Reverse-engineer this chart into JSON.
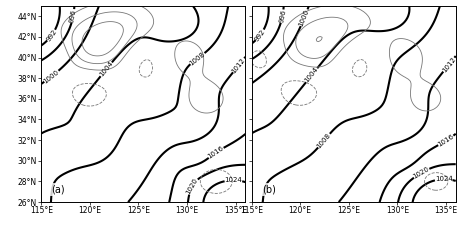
{
  "lon_range": [
    115,
    136
  ],
  "lat_range": [
    26,
    45
  ],
  "lon_ticks": [
    115,
    120,
    125,
    130,
    135
  ],
  "lat_ticks": [
    26,
    28,
    30,
    32,
    34,
    36,
    38,
    40,
    42,
    44
  ],
  "slp_levels": [
    992,
    996,
    1000,
    1004,
    1008,
    1012,
    1016,
    1020,
    1024
  ],
  "diff_pos_levels": [
    0.5,
    1.0,
    1.5,
    2.0,
    2.5
  ],
  "diff_neg_levels": [
    -2.5,
    -2.0,
    -1.5,
    -1.0,
    -0.5
  ],
  "panel_labels": [
    "(a)",
    "(b)"
  ],
  "background_color": "#ffffff",
  "contour_color_heavy": "#000000",
  "contour_color_light": "#777777",
  "lw_heavy": 1.5,
  "lw_light": 0.6,
  "label_fontsize": 5.0,
  "tick_fontsize": 5.5
}
